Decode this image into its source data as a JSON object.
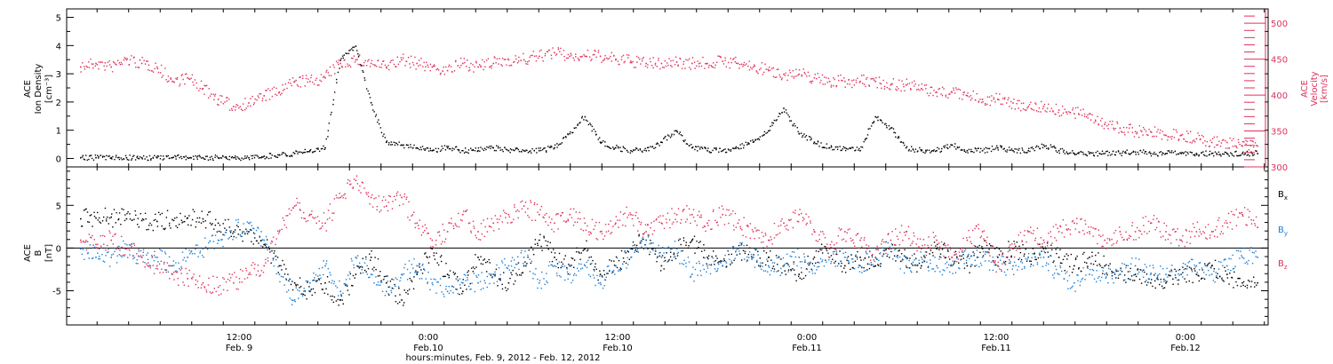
{
  "chart_data": [
    {
      "type": "scatter",
      "panel": "top",
      "ylabel_lines": [
        "ACE",
        "Ion Density",
        "[cm⁻³]"
      ],
      "ylabel_right_lines": [
        "ACE",
        "Velocity",
        "[km/s]"
      ],
      "ylim": [
        -0.3,
        5.3
      ],
      "ylim_right": [
        300,
        520
      ],
      "yticks": [
        "0",
        "1",
        "2",
        "3",
        "4",
        "5"
      ],
      "yticks_right": [
        "300",
        "350",
        "400",
        "450",
        "500"
      ],
      "colors": {
        "density": "#000000",
        "velocity": "#e0305a"
      },
      "series": [
        {
          "axis": "left",
          "color": "#000000",
          "x": [
            0,
            1,
            2,
            3,
            4,
            5,
            6,
            7,
            8,
            9,
            10,
            11,
            12,
            13,
            14,
            15,
            16,
            17,
            18,
            19,
            20,
            21,
            22,
            23,
            24,
            25,
            26,
            27,
            28,
            29,
            30,
            31,
            32,
            33,
            34,
            35,
            36,
            37,
            38,
            39,
            40,
            41,
            42,
            43,
            44,
            45,
            46,
            47,
            48,
            49,
            50,
            51,
            52,
            53,
            54,
            55,
            56,
            57,
            58,
            59,
            60,
            61,
            62,
            63,
            64,
            65,
            66,
            67,
            68,
            69,
            70,
            71,
            72,
            73,
            74,
            75,
            76,
            77
          ],
          "y": [
            0.05,
            0.05,
            0.05,
            0.05,
            0.05,
            0.05,
            0.05,
            0.05,
            0.05,
            0.05,
            0.05,
            0.05,
            0.1,
            0.15,
            0.2,
            0.3,
            0.4,
            3.5,
            4.0,
            2.0,
            0.6,
            0.5,
            0.4,
            0.3,
            0.4,
            0.3,
            0.3,
            0.4,
            0.3,
            0.3,
            0.3,
            0.4,
            0.9,
            1.5,
            0.6,
            0.4,
            0.3,
            0.3,
            0.6,
            1.0,
            0.4,
            0.3,
            0.3,
            0.4,
            0.6,
            1.0,
            1.8,
            0.9,
            0.6,
            0.4,
            0.4,
            0.3,
            1.5,
            1.1,
            0.4,
            0.3,
            0.3,
            0.5,
            0.3,
            0.3,
            0.4,
            0.3,
            0.3,
            0.5,
            0.3,
            0.2,
            0.2,
            0.2,
            0.2,
            0.25,
            0.2,
            0.2,
            0.2,
            0.2,
            0.2,
            0.2,
            0.2,
            0.2
          ]
        },
        {
          "axis": "right",
          "color": "#e0305a",
          "x": [
            0,
            1,
            2,
            3,
            4,
            5,
            6,
            7,
            8,
            9,
            10,
            11,
            12,
            13,
            14,
            15,
            16,
            17,
            18,
            19,
            20,
            21,
            22,
            23,
            24,
            25,
            26,
            27,
            28,
            29,
            30,
            31,
            32,
            33,
            34,
            35,
            36,
            37,
            38,
            39,
            40,
            41,
            42,
            43,
            44,
            45,
            46,
            47,
            48,
            49,
            50,
            51,
            52,
            53,
            54,
            55,
            56,
            57,
            58,
            59,
            60,
            61,
            62,
            63,
            64,
            65,
            66,
            67,
            68,
            69,
            70,
            71,
            72,
            73,
            74,
            75,
            76,
            77
          ],
          "y": [
            440,
            445,
            440,
            450,
            445,
            440,
            420,
            425,
            410,
            395,
            385,
            390,
            400,
            405,
            420,
            420,
            425,
            445,
            450,
            445,
            440,
            450,
            445,
            440,
            435,
            445,
            440,
            445,
            450,
            450,
            455,
            460,
            455,
            455,
            455,
            450,
            448,
            445,
            445,
            447,
            445,
            445,
            448,
            445,
            440,
            435,
            430,
            430,
            425,
            420,
            420,
            420,
            420,
            415,
            415,
            410,
            405,
            405,
            400,
            395,
            395,
            390,
            385,
            385,
            380,
            375,
            375,
            360,
            355,
            350,
            350,
            345,
            345,
            340,
            335,
            335,
            330,
            330
          ]
        }
      ]
    },
    {
      "type": "scatter",
      "panel": "bottom",
      "ylabel_lines": [
        "ACE",
        "B",
        "[nT]"
      ],
      "ylim": [
        -9,
        9.5
      ],
      "yticks": [
        "-5",
        "0",
        "5"
      ],
      "xticks": [
        {
          "time": "12:00",
          "date": "Feb. 9"
        },
        {
          "time": "0:00",
          "date": "Feb.10"
        },
        {
          "time": "12:00",
          "date": "Feb.10"
        },
        {
          "time": "0:00",
          "date": "Feb.11"
        },
        {
          "time": "12:00",
          "date": "Feb.11"
        },
        {
          "time": "0:00",
          "date": "Feb.12"
        }
      ],
      "xlabel": "hours:minutes, Feb.  9, 2012 - Feb. 12, 2012",
      "legend": [
        {
          "label": "B",
          "sub": "x",
          "color": "#000000"
        },
        {
          "label": "B",
          "sub": "y",
          "color": "#1a7fd6"
        },
        {
          "label": "B",
          "sub": "z",
          "color": "#e0305a"
        }
      ],
      "series": [
        {
          "name": "Bx",
          "color": "#000000",
          "x": [
            0,
            1,
            2,
            3,
            4,
            5,
            6,
            7,
            8,
            9,
            10,
            11,
            12,
            13,
            14,
            15,
            16,
            17,
            18,
            19,
            20,
            21,
            22,
            23,
            24,
            25,
            26,
            27,
            28,
            29,
            30,
            31,
            32,
            33,
            34,
            35,
            36,
            37,
            38,
            39,
            40,
            41,
            42,
            43,
            44,
            45,
            46,
            47,
            48,
            49,
            50,
            51,
            52,
            53,
            54,
            55,
            56,
            57,
            58,
            59,
            60,
            61,
            62,
            63,
            64,
            65,
            66,
            67,
            68,
            69,
            70,
            71,
            72,
            73,
            74,
            75,
            76,
            77
          ],
          "y": [
            3.5,
            3.6,
            3.7,
            3.5,
            3.3,
            3.2,
            3.4,
            3.6,
            3.5,
            3.0,
            2.0,
            2.0,
            0.5,
            -2,
            -4,
            -5,
            -4,
            -6,
            -3,
            -1,
            -4,
            -6,
            -3,
            0,
            -3,
            -5,
            -1,
            -3,
            -4,
            -2,
            1,
            -1,
            -2,
            0,
            -3,
            -2,
            0,
            1,
            -2,
            0,
            1,
            -1,
            -2,
            0,
            -1,
            -1,
            -2,
            -3,
            -1,
            0,
            -2,
            -1,
            -2,
            0,
            -1,
            -2,
            0,
            -1,
            -2,
            0,
            -1,
            0,
            -1,
            0,
            -1,
            -2,
            -1,
            -2,
            -3,
            -3,
            -4,
            -4,
            -3,
            -3,
            -2,
            -3,
            -4,
            -4
          ]
        },
        {
          "name": "By",
          "color": "#1a7fd6",
          "x": [
            0,
            1,
            2,
            3,
            4,
            5,
            6,
            7,
            8,
            9,
            10,
            11,
            12,
            13,
            14,
            15,
            16,
            17,
            18,
            19,
            20,
            21,
            22,
            23,
            24,
            25,
            26,
            27,
            28,
            29,
            30,
            31,
            32,
            33,
            34,
            35,
            36,
            37,
            38,
            39,
            40,
            41,
            42,
            43,
            44,
            45,
            46,
            47,
            48,
            49,
            50,
            51,
            52,
            53,
            54,
            55,
            56,
            57,
            58,
            59,
            60,
            61,
            62,
            63,
            64,
            65,
            66,
            67,
            68,
            69,
            70,
            71,
            72,
            73,
            74,
            75,
            76,
            77
          ],
          "y": [
            0,
            -1,
            -1,
            0,
            -1,
            -1,
            -2,
            -1,
            0,
            1,
            2,
            3,
            1,
            -3,
            -6,
            -4,
            -2,
            -5,
            -1,
            -3,
            -5,
            -3,
            -2,
            -4,
            -5,
            -4,
            -4,
            -3,
            -2,
            -1,
            -4,
            -2,
            -3,
            -2,
            -4,
            -2,
            -1,
            1,
            -1,
            0,
            -3,
            -2,
            -2,
            0,
            -1,
            -2,
            -2,
            -1,
            -2,
            -1,
            -1,
            -2,
            -1,
            0,
            -2,
            -1,
            -2,
            -2,
            -1,
            -1,
            -2,
            -2,
            -1,
            -1,
            -3,
            -4,
            -3,
            -3,
            -3,
            -2,
            -3,
            -3,
            -3,
            -2,
            -3,
            -2,
            -1,
            -1
          ]
        },
        {
          "name": "Bz",
          "color": "#e0305a",
          "x": [
            0,
            1,
            2,
            3,
            4,
            5,
            6,
            7,
            8,
            9,
            10,
            11,
            12,
            13,
            14,
            15,
            16,
            17,
            18,
            19,
            20,
            21,
            22,
            23,
            24,
            25,
            26,
            27,
            28,
            29,
            30,
            31,
            32,
            33,
            34,
            35,
            36,
            37,
            38,
            39,
            40,
            41,
            42,
            43,
            44,
            45,
            46,
            47,
            48,
            49,
            50,
            51,
            52,
            53,
            54,
            55,
            56,
            57,
            58,
            59,
            60,
            61,
            62,
            63,
            64,
            65,
            66,
            67,
            68,
            69,
            70,
            71,
            72,
            73,
            74,
            75,
            76,
            77
          ],
          "y": [
            1,
            0.5,
            1,
            0,
            -1,
            -2,
            -3,
            -3.5,
            -4,
            -4.5,
            -4,
            -3,
            -2,
            2,
            5,
            4,
            3,
            6,
            8,
            6,
            5,
            6,
            3,
            1,
            2,
            4,
            2,
            3,
            4,
            5,
            4,
            3,
            4,
            3,
            2,
            3,
            4,
            2,
            3,
            4,
            4,
            3,
            4,
            3,
            2,
            1,
            3,
            4,
            2,
            0,
            2,
            1,
            -1,
            1,
            2,
            0,
            1,
            -1,
            1,
            2,
            -2,
            0,
            2,
            1,
            2,
            3,
            2,
            1,
            2,
            2,
            3,
            2,
            1,
            2,
            2,
            3,
            4,
            2.5
          ]
        }
      ]
    }
  ]
}
